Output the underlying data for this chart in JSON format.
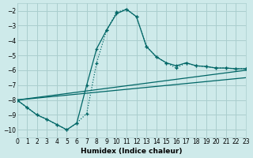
{
  "xlabel": "Humidex (Indice chaleur)",
  "bg_color": "#ceeaea",
  "grid_color": "#aacece",
  "line_color": "#006666",
  "xlim": [
    0,
    23
  ],
  "ylim": [
    -10.5,
    -1.5
  ],
  "yticks": [
    -10,
    -9,
    -8,
    -7,
    -6,
    -5,
    -4,
    -3,
    -2
  ],
  "xticks": [
    0,
    1,
    2,
    3,
    4,
    5,
    6,
    7,
    8,
    9,
    10,
    11,
    12,
    13,
    14,
    15,
    16,
    17,
    18,
    19,
    20,
    21,
    22,
    23
  ],
  "line1_x": [
    0,
    23
  ],
  "line1_y": [
    -8.0,
    -6.0
  ],
  "line2_x": [
    0,
    23
  ],
  "line2_y": [
    -8.0,
    -6.5
  ],
  "curve_dotted_x": [
    0,
    1,
    2,
    3,
    4,
    5,
    6,
    7,
    8,
    9,
    10,
    11,
    12,
    13,
    14,
    15,
    16,
    17,
    18,
    19,
    20,
    21,
    22,
    23
  ],
  "curve_dotted_y": [
    -8.0,
    -8.5,
    -9.0,
    -9.3,
    -9.65,
    -10.0,
    -9.55,
    -8.9,
    -5.5,
    -3.3,
    -2.1,
    -1.9,
    -2.4,
    -4.4,
    -5.1,
    -5.5,
    -5.85,
    -5.5,
    -5.7,
    -5.75,
    -5.85,
    -5.85,
    -5.9,
    -5.9
  ],
  "curve_solid_x": [
    0,
    1,
    2,
    3,
    4,
    5,
    6,
    7,
    8,
    9,
    10,
    11,
    12,
    13,
    14,
    15,
    16,
    17,
    18,
    19,
    20,
    21,
    22,
    23
  ],
  "curve_solid_y": [
    -8.0,
    -8.5,
    -9.0,
    -9.3,
    -9.65,
    -10.0,
    -9.55,
    -7.0,
    -4.55,
    -3.3,
    -2.2,
    -1.9,
    -2.4,
    -4.4,
    -5.1,
    -5.5,
    -5.7,
    -5.5,
    -5.7,
    -5.75,
    -5.85,
    -5.85,
    -5.9,
    -5.9
  ]
}
